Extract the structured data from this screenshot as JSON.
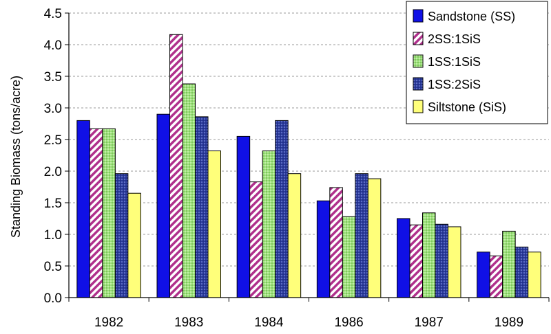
{
  "chart_data": {
    "type": "bar",
    "title": "",
    "xlabel": "",
    "ylabel": "Standing Biomass (tons/acre)",
    "ylim": [
      0,
      4.5
    ],
    "yticks": [
      "0.0",
      "0.5",
      "1.0",
      "1.5",
      "2.0",
      "2.5",
      "3.0",
      "3.5",
      "4.0",
      "4.5"
    ],
    "grid": true,
    "legend_position": "top-right",
    "categories": [
      "1982",
      "1983",
      "1984",
      "1986",
      "1987",
      "1989"
    ],
    "series": [
      {
        "name": "Sandstone (SS)",
        "color": "#1010e6",
        "pattern": "solid",
        "values": [
          2.8,
          2.9,
          2.55,
          1.53,
          1.25,
          0.72
        ]
      },
      {
        "name": "2SS:1SiS",
        "color": "#b0308c",
        "pattern": "hatch",
        "values": [
          2.67,
          4.16,
          1.83,
          1.74,
          1.15,
          0.66
        ]
      },
      {
        "name": "1SS:1SiS",
        "color": "#9ee27a",
        "pattern": "dots",
        "values": [
          2.67,
          3.38,
          2.32,
          1.28,
          1.34,
          1.05
        ]
      },
      {
        "name": "1SS:2SiS",
        "color": "#2a3a9c",
        "pattern": "dots",
        "values": [
          1.96,
          2.86,
          2.8,
          1.96,
          1.16,
          0.8
        ]
      },
      {
        "name": "Siltstone (SiS)",
        "color": "#ffff7a",
        "pattern": "solid",
        "values": [
          1.65,
          2.32,
          1.96,
          1.88,
          1.12,
          0.72
        ]
      }
    ]
  }
}
